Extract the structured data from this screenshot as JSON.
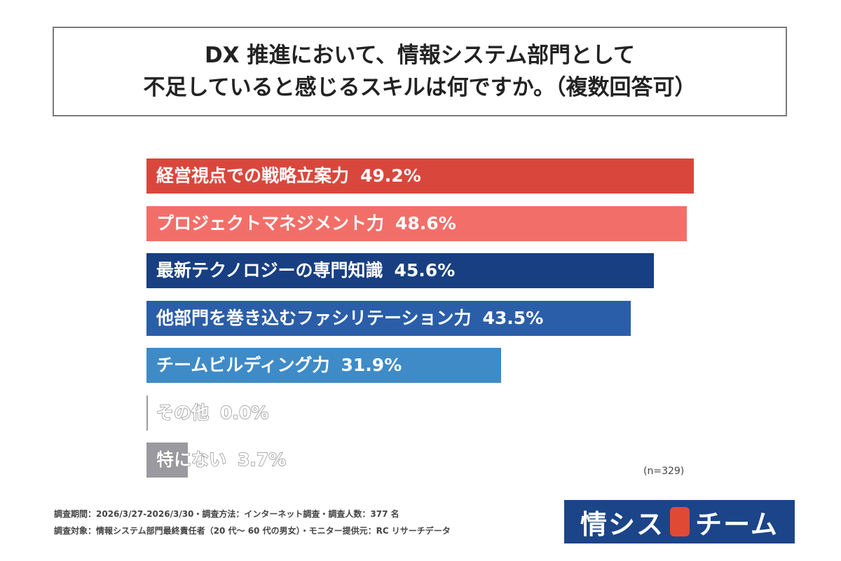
{
  "chart_data": {
    "type": "bar",
    "orientation": "horizontal",
    "title_lines": [
      "DX 推進において、情報システム部門として",
      "不足していると感じるスキルは何ですか。（複数回答可）"
    ],
    "categories": [
      "経営視点での戦略立案力",
      "プロジェクトマネジメント力",
      "最新テクノロジーの専門知識",
      "他部門を巻き込むファシリテーション力",
      "チームビルディング力",
      "その他",
      "特にない"
    ],
    "values": [
      49.2,
      48.6,
      45.6,
      43.5,
      31.9,
      0.0,
      3.7
    ],
    "value_labels": [
      "49.2%",
      "48.6%",
      "45.6%",
      "43.5%",
      "31.9%",
      "0.0%",
      "3.7%"
    ],
    "colors": [
      "#d9473c",
      "#f26f69",
      "#173f82",
      "#2b5ea8",
      "#3f8bc7",
      "#9b9aa0",
      "#9b9aa0"
    ],
    "note": "(n=329)"
  },
  "footer": {
    "line1": "調査期間：2026/3/27-2026/3/30・調査方法：インターネット調査・調査人数：377 名",
    "line2": "調査対象：情報システム部門最終責任者（20 代～ 60 代の男女）・モニター提供元：RC リサーチデータ"
  },
  "logo": {
    "left": "情シス",
    "right": "チーム"
  }
}
